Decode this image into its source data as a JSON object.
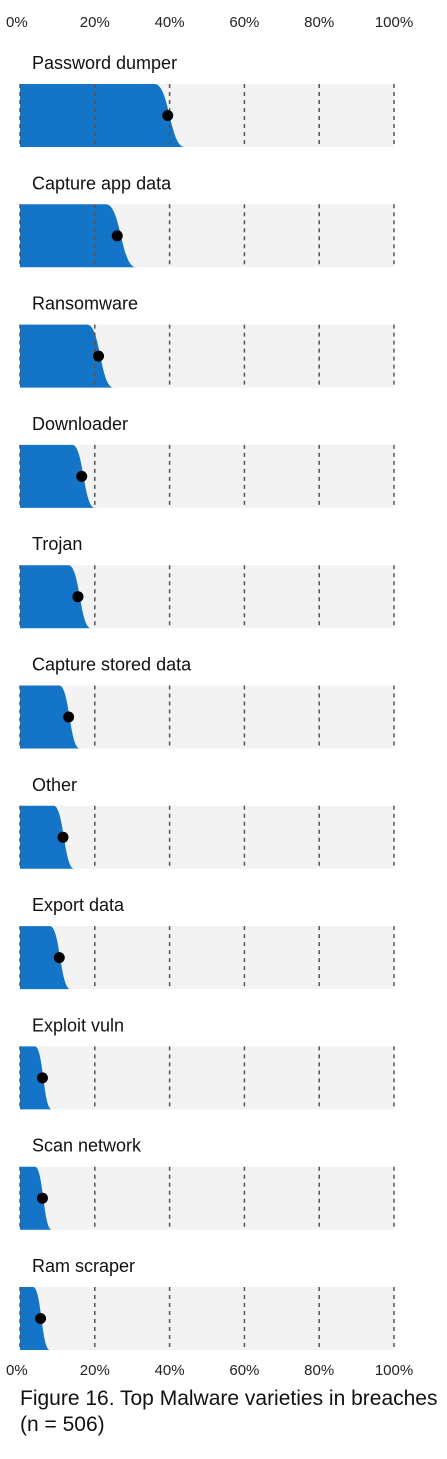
{
  "chart_data": {
    "type": "area",
    "caption": "Figure 16. Top Malware varieties in breaches (n = 506)",
    "x_ticks": [
      "0%",
      "20%",
      "40%",
      "60%",
      "80%",
      "100%"
    ],
    "xlim": [
      0,
      100
    ],
    "grid": true,
    "colors": {
      "fill": "#1475c8",
      "panel": "#f3f3f3",
      "point": "#000000",
      "grid": "#555555"
    },
    "categories": [
      {
        "label": "Password dumper",
        "value": 39.5,
        "low": 36,
        "high": 44
      },
      {
        "label": "Capture app data",
        "value": 26,
        "low": 23,
        "high": 31
      },
      {
        "label": "Ransomware",
        "value": 21,
        "low": 18,
        "high": 25
      },
      {
        "label": "Downloader",
        "value": 16.5,
        "low": 14,
        "high": 20
      },
      {
        "label": "Trojan",
        "value": 15.5,
        "low": 13,
        "high": 19
      },
      {
        "label": "Capture stored data",
        "value": 13,
        "low": 10.5,
        "high": 16
      },
      {
        "label": "Other",
        "value": 11.5,
        "low": 9,
        "high": 14.5
      },
      {
        "label": "Export data",
        "value": 10.5,
        "low": 8,
        "high": 13.5
      },
      {
        "label": "Exploit vuln",
        "value": 6,
        "low": 4,
        "high": 8.5
      },
      {
        "label": "Scan network",
        "value": 6,
        "low": 4,
        "high": 8.5
      },
      {
        "label": "Ram scraper",
        "value": 5.5,
        "low": 3.5,
        "high": 8
      }
    ]
  }
}
